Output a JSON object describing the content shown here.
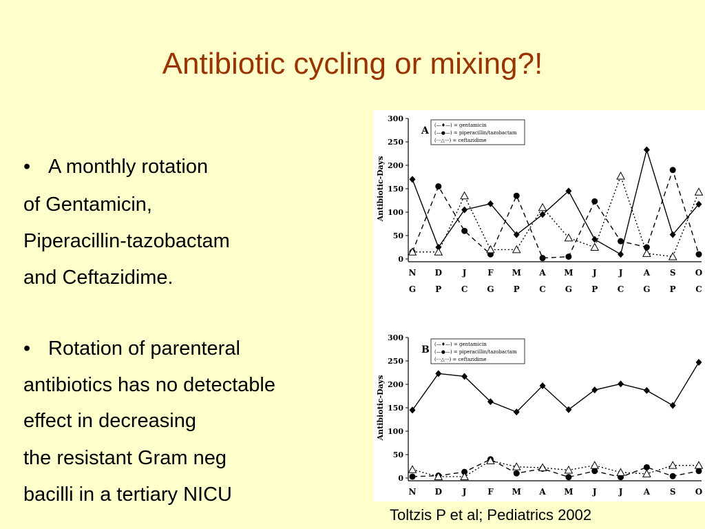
{
  "slide": {
    "title": "Antibiotic cycling or mixing?!",
    "bullet_symbol": "•",
    "bullets": [
      {
        "lines": [
          "A monthly rotation",
          "of Gentamicin,",
          "Piperacillin-tazobactam",
          "and Ceftazidime."
        ]
      },
      {
        "lines": [
          "Rotation of parenteral",
          "antibiotics has no detectable",
          "effect in decreasing",
          "the resistant Gram neg",
          "bacilli in a tertiary NICU"
        ]
      }
    ],
    "citation": "Toltzis P et al; Pediatrics 2002"
  },
  "chart_data": [
    {
      "type": "line",
      "panel": "A",
      "ylabel": "Antibiotic-Days",
      "ylim": [
        0,
        300
      ],
      "yticks": [
        0,
        50,
        100,
        150,
        200,
        250,
        300
      ],
      "categories": [
        "N",
        "D",
        "J",
        "F",
        "M",
        "A",
        "M",
        "J",
        "J",
        "A",
        "S",
        "O"
      ],
      "categories2": [
        "G",
        "P",
        "C",
        "G",
        "P",
        "C",
        "G",
        "P",
        "C",
        "G",
        "P",
        "C"
      ],
      "legend_position": "top",
      "series": [
        {
          "name": "(—♦—) = gentamicin",
          "style": "solid",
          "marker": "diamond",
          "values": [
            170,
            25,
            105,
            118,
            52,
            95,
            145,
            42,
            10,
            233,
            52,
            117
          ]
        },
        {
          "name": "(—●—) = piperacillin/tazobactam",
          "style": "dashed",
          "marker": "circle",
          "values": [
            15,
            155,
            60,
            10,
            135,
            2,
            5,
            123,
            38,
            25,
            190,
            10
          ]
        },
        {
          "name": "(···△···) = ceftazidime",
          "style": "dotted",
          "marker": "triangle",
          "values": [
            15,
            15,
            135,
            20,
            20,
            110,
            45,
            25,
            177,
            12,
            5,
            143
          ]
        }
      ]
    },
    {
      "type": "line",
      "panel": "B",
      "ylabel": "Antibiotic-Days",
      "ylim": [
        0,
        300
      ],
      "yticks": [
        0,
        50,
        100,
        150,
        200,
        250,
        300
      ],
      "categories": [
        "N",
        "D",
        "J",
        "F",
        "M",
        "A",
        "M",
        "J",
        "J",
        "A",
        "S",
        "O"
      ],
      "legend_position": "top",
      "series": [
        {
          "name": "(—♦—) = gentamicin",
          "style": "solid",
          "marker": "diamond",
          "values": [
            145,
            223,
            217,
            163,
            141,
            197,
            146,
            188,
            201,
            187,
            155,
            247
          ]
        },
        {
          "name": "(—●—) = piperacillin/tazobactam",
          "style": "dashed",
          "marker": "circle",
          "values": [
            3,
            5,
            13,
            40,
            10,
            20,
            2,
            15,
            2,
            23,
            4,
            15
          ]
        },
        {
          "name": "(···△···) = ceftazidime",
          "style": "dotted",
          "marker": "triangle",
          "values": [
            18,
            3,
            3,
            37,
            24,
            22,
            17,
            27,
            12,
            9,
            27,
            27
          ]
        }
      ]
    }
  ]
}
